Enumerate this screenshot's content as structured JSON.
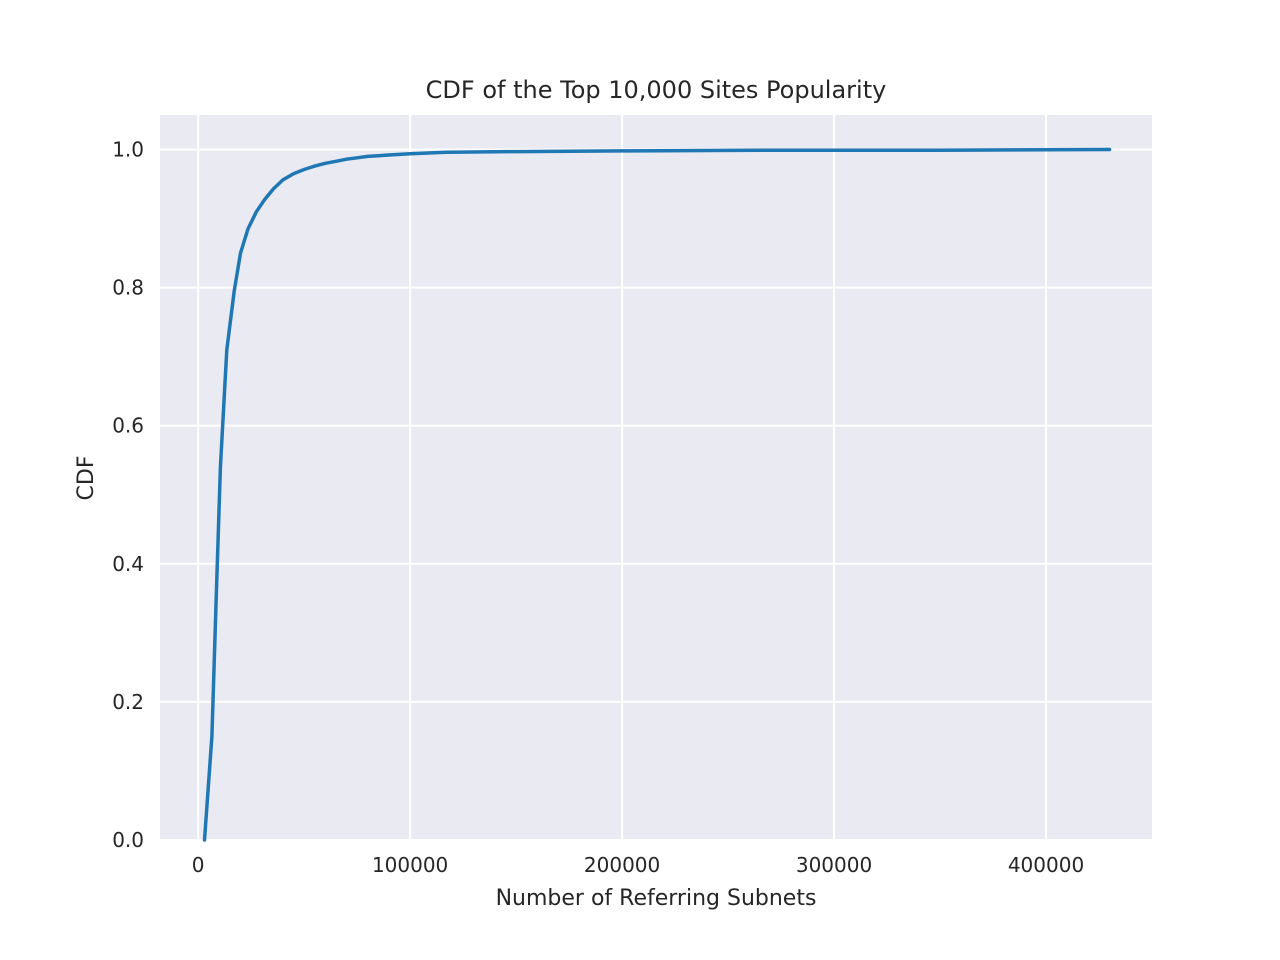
{
  "chart_data": {
    "type": "line",
    "title": "CDF of the Top 10,000 Sites Popularity",
    "xlabel": "Number of Referring Subnets",
    "ylabel": "CDF",
    "xlim": [
      -18000,
      450000
    ],
    "ylim": [
      0.0,
      1.05
    ],
    "xticks": [
      0,
      100000,
      200000,
      300000,
      400000
    ],
    "xtick_labels": [
      "0",
      "100000",
      "200000",
      "300000",
      "400000"
    ],
    "yticks": [
      0.0,
      0.2,
      0.4,
      0.6,
      0.8,
      1.0
    ],
    "ytick_labels": [
      "0.0",
      "0.2",
      "0.4",
      "0.6",
      "0.8",
      "1.0"
    ],
    "grid": true,
    "series": [
      {
        "color": "#1f77b4",
        "x": [
          3000,
          6500,
          8500,
          10500,
          13500,
          17000,
          20000,
          23500,
          27500,
          31500,
          35500,
          40000,
          45000,
          50000,
          55000,
          60000,
          65000,
          70000,
          75000,
          80000,
          85000,
          90000,
          100000,
          117000,
          150000,
          200000,
          270000,
          350000,
          430000
        ],
        "y": [
          0.0,
          0.15,
          0.35,
          0.54,
          0.71,
          0.795,
          0.85,
          0.885,
          0.91,
          0.928,
          0.943,
          0.956,
          0.965,
          0.971,
          0.976,
          0.98,
          0.983,
          0.986,
          0.988,
          0.99,
          0.991,
          0.992,
          0.994,
          0.996,
          0.997,
          0.998,
          0.999,
          0.999,
          1.0
        ]
      }
    ]
  }
}
